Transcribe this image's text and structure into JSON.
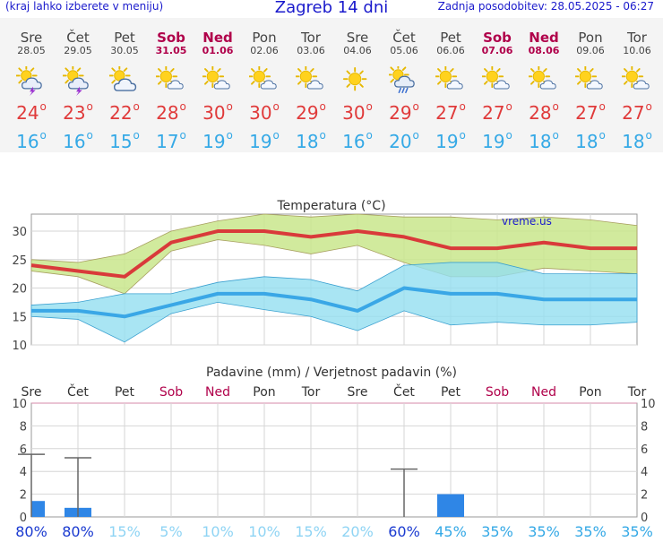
{
  "header": {
    "left": "(kraj lahko izberete v meniju)",
    "title": "Zagreb 14 dni",
    "right": "Zadnja posodobitev: 28.05.2025 - 06:27"
  },
  "days": [
    {
      "name": "Sre",
      "date": "28.05",
      "weekend": false,
      "icon": "sun-cloud-lightning-icon",
      "tmax": "24",
      "tmin": "16"
    },
    {
      "name": "Čet",
      "date": "29.05",
      "weekend": false,
      "icon": "sun-cloud-lightning-icon",
      "tmax": "23",
      "tmin": "16"
    },
    {
      "name": "Pet",
      "date": "30.05",
      "weekend": false,
      "icon": "sun-cloudy-icon",
      "tmax": "22",
      "tmin": "15"
    },
    {
      "name": "Sob",
      "date": "31.05",
      "weekend": true,
      "icon": "sun-small-cloud-icon",
      "tmax": "28",
      "tmin": "17"
    },
    {
      "name": "Ned",
      "date": "01.06",
      "weekend": true,
      "icon": "sun-small-cloud-icon",
      "tmax": "30",
      "tmin": "19"
    },
    {
      "name": "Pon",
      "date": "02.06",
      "weekend": false,
      "icon": "sun-small-cloud-icon",
      "tmax": "30",
      "tmin": "19"
    },
    {
      "name": "Tor",
      "date": "03.06",
      "weekend": false,
      "icon": "sun-small-cloud-icon",
      "tmax": "29",
      "tmin": "18"
    },
    {
      "name": "Sre",
      "date": "04.06",
      "weekend": false,
      "icon": "sun-icon",
      "tmax": "30",
      "tmin": "16"
    },
    {
      "name": "Čet",
      "date": "05.06",
      "weekend": false,
      "icon": "sun-cloud-rain-icon",
      "tmax": "29",
      "tmin": "20"
    },
    {
      "name": "Pet",
      "date": "06.06",
      "weekend": false,
      "icon": "sun-small-cloud-icon",
      "tmax": "27",
      "tmin": "19"
    },
    {
      "name": "Sob",
      "date": "07.06",
      "weekend": true,
      "icon": "sun-small-cloud-icon",
      "tmax": "27",
      "tmin": "19"
    },
    {
      "name": "Ned",
      "date": "08.06",
      "weekend": true,
      "icon": "sun-small-cloud-icon",
      "tmax": "28",
      "tmin": "18"
    },
    {
      "name": "Pon",
      "date": "09.06",
      "weekend": false,
      "icon": "sun-small-cloud-icon",
      "tmax": "27",
      "tmin": "18"
    },
    {
      "name": "Tor",
      "date": "10.06",
      "weekend": false,
      "icon": "sun-small-cloud-icon",
      "tmax": "27",
      "tmin": "18"
    }
  ],
  "chart_data": [
    {
      "type": "line",
      "title": "Temperatura (°C)",
      "watermark": "vreme.us",
      "ylim": [
        10,
        33
      ],
      "yticks": [
        10,
        15,
        20,
        25,
        30
      ],
      "grid": true,
      "series": [
        {
          "values": [
            24,
            23,
            22,
            28,
            30,
            30,
            29,
            30,
            29,
            27,
            27,
            28,
            27,
            27
          ],
          "color": "#d93a3a"
        },
        {
          "values": [
            25,
            24.5,
            26,
            30,
            31.8,
            33,
            32.5,
            33,
            32.5,
            32.5,
            32,
            32.5,
            32,
            31
          ],
          "color": "#c9e68c"
        },
        {
          "values": [
            23,
            22,
            19,
            26.5,
            28.5,
            27.5,
            26,
            27.5,
            24.5,
            22,
            22,
            23.5,
            23,
            22.5
          ],
          "color": "#c9e68c"
        },
        {
          "values": [
            16,
            16,
            15,
            17,
            19,
            19,
            18,
            16,
            20,
            19,
            19,
            18,
            18,
            18
          ],
          "color": "#3aa7e6"
        },
        {
          "values": [
            17,
            17.5,
            19,
            19,
            21,
            22,
            21.5,
            19.5,
            24,
            24.5,
            24.5,
            22.5,
            22.5,
            22.5
          ],
          "color": "#93dff0"
        },
        {
          "values": [
            15,
            14.5,
            10.5,
            15.5,
            17.5,
            16.2,
            15,
            12.5,
            16,
            13.5,
            14,
            13.5,
            13.5,
            14
          ],
          "color": "#93dff0"
        }
      ]
    },
    {
      "type": "bar",
      "title": "Padavine (mm) / Verjetnost padavin (%)",
      "ylim": [
        0,
        10
      ],
      "yticks": [
        0,
        2,
        4,
        6,
        8,
        10
      ],
      "categories": [
        "Sre",
        "Čet",
        "Pet",
        "Sob",
        "Ned",
        "Pon",
        "Tor",
        "Sre",
        "Čet",
        "Pet",
        "Sob",
        "Ned",
        "Pon",
        "Tor"
      ],
      "values": [
        1.4,
        0.8,
        0,
        0,
        0,
        0,
        0,
        0,
        0,
        2.0,
        0,
        0,
        0,
        0
      ],
      "error_top": [
        5.5,
        5.2,
        null,
        null,
        null,
        null,
        null,
        null,
        4.2,
        null,
        null,
        null,
        null,
        null
      ],
      "probability": [
        "80%",
        "80%",
        "15%",
        "5%",
        "10%",
        "10%",
        "15%",
        "20%",
        "60%",
        "45%",
        "35%",
        "35%",
        "35%",
        "35%"
      ],
      "bar_color": "#2f86e6"
    }
  ]
}
